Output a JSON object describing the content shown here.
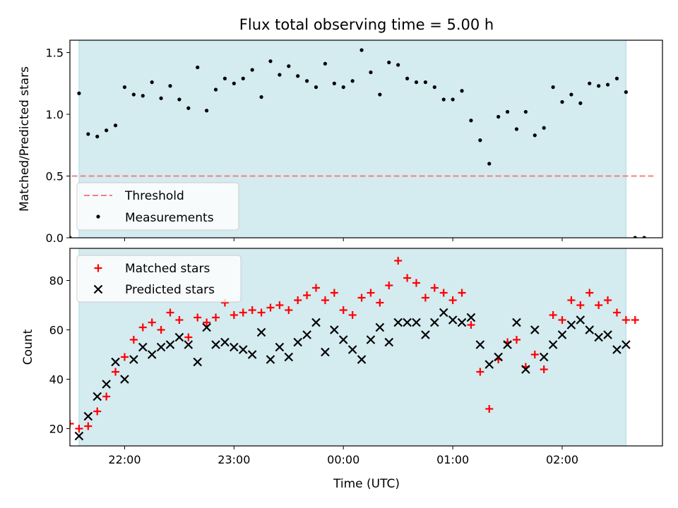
{
  "colors": {
    "band": "#d4ebf0",
    "threshold": "#f08080",
    "measurement": "#000000",
    "matched": "#ff0000",
    "predicted": "#000000"
  },
  "chart_data": [
    {
      "type": "scatter",
      "title": "Flux total observing time = 5.00 h",
      "ylabel": "Matched/Predicted stars",
      "xlim": [
        "21:30",
        "02:55"
      ],
      "ylim": [
        0,
        1.6
      ],
      "yticks": [
        "0.0",
        "0.5",
        "1.0",
        "1.5"
      ],
      "shaded_interval": [
        "21:35",
        "02:35"
      ],
      "threshold": {
        "label": "Threshold",
        "value": 0.5,
        "x_range": [
          "21:31",
          "02:50"
        ]
      },
      "legend": {
        "position": "lower-left",
        "entries": [
          "Threshold",
          "Measurements"
        ]
      },
      "series": [
        {
          "name": "Measurements",
          "marker": "dot",
          "x": [
            "21:30",
            "21:35",
            "21:40",
            "21:45",
            "21:50",
            "21:55",
            "22:00",
            "22:05",
            "22:10",
            "22:15",
            "22:20",
            "22:25",
            "22:30",
            "22:35",
            "22:40",
            "22:45",
            "22:50",
            "22:55",
            "23:00",
            "23:05",
            "23:10",
            "23:15",
            "23:20",
            "23:25",
            "23:30",
            "23:35",
            "23:40",
            "23:45",
            "23:50",
            "23:55",
            "00:00",
            "00:05",
            "00:10",
            "00:15",
            "00:20",
            "00:25",
            "00:30",
            "00:35",
            "00:40",
            "00:45",
            "00:50",
            "00:55",
            "01:00",
            "01:05",
            "01:10",
            "01:15",
            "01:20",
            "01:25",
            "01:30",
            "01:35",
            "01:40",
            "01:45",
            "01:50",
            "01:55",
            "02:00",
            "02:05",
            "02:10",
            "02:15",
            "02:20",
            "02:25",
            "02:30",
            "02:35",
            "02:40"
          ],
          "y": [
            0.0,
            1.17,
            0.84,
            0.82,
            0.87,
            0.91,
            1.22,
            1.16,
            1.15,
            1.26,
            1.13,
            1.23,
            1.12,
            1.05,
            1.38,
            1.03,
            1.2,
            1.29,
            1.25,
            1.29,
            1.36,
            1.14,
            1.43,
            1.32,
            1.39,
            1.31,
            1.27,
            1.22,
            1.41,
            1.25,
            1.22,
            1.27,
            1.52,
            1.34,
            1.16,
            1.42,
            1.4,
            1.29,
            1.26,
            1.26,
            1.22,
            1.12,
            1.12,
            1.19,
            0.95,
            0.79,
            0.6,
            0.98,
            1.02,
            0.88,
            1.02,
            0.83,
            0.89,
            1.22,
            1.1,
            1.16,
            1.09,
            1.25,
            1.23,
            1.24,
            1.29,
            1.18,
            0.0
          ]
        },
        {
          "name": "",
          "marker": "dot",
          "x": [
            "02:45"
          ],
          "y": [
            0.0
          ]
        }
      ]
    },
    {
      "type": "scatter",
      "xlabel": "Time (UTC)",
      "ylabel": "Count",
      "xlim": [
        "21:30",
        "02:55"
      ],
      "ylim": [
        13,
        93
      ],
      "xticks": [
        "22:00",
        "23:00",
        "00:00",
        "01:00",
        "02:00"
      ],
      "yticks": [
        "20",
        "40",
        "60",
        "80"
      ],
      "shaded_interval": [
        "21:35",
        "02:35"
      ],
      "legend": {
        "position": "upper-left",
        "entries": [
          "Matched stars",
          "Predicted stars"
        ]
      },
      "series": [
        {
          "name": "Matched stars",
          "marker": "plus",
          "x": [
            "21:30",
            "21:35",
            "21:40",
            "21:45",
            "21:50",
            "21:55",
            "22:00",
            "22:05",
            "22:10",
            "22:15",
            "22:20",
            "22:25",
            "22:30",
            "22:35",
            "22:40",
            "22:45",
            "22:50",
            "22:55",
            "23:00",
            "23:05",
            "23:10",
            "23:15",
            "23:20",
            "23:25",
            "23:30",
            "23:35",
            "23:40",
            "23:45",
            "23:50",
            "23:55",
            "00:00",
            "00:05",
            "00:10",
            "00:15",
            "00:20",
            "00:25",
            "00:30",
            "00:35",
            "00:40",
            "00:45",
            "00:50",
            "00:55",
            "01:00",
            "01:05",
            "01:10",
            "01:15",
            "01:20",
            "01:25",
            "01:30",
            "01:35",
            "01:40",
            "01:45",
            "01:50",
            "01:55",
            "02:00",
            "02:05",
            "02:10",
            "02:15",
            "02:20",
            "02:25",
            "02:30",
            "02:35",
            "02:40"
          ],
          "y": [
            22,
            20,
            21,
            27,
            33,
            43,
            49,
            56,
            61,
            63,
            60,
            67,
            64,
            57,
            65,
            63,
            65,
            71,
            66,
            67,
            68,
            67,
            69,
            70,
            68,
            72,
            74,
            77,
            72,
            75,
            68,
            66,
            73,
            75,
            71,
            78,
            88,
            81,
            79,
            73,
            77,
            75,
            72,
            75,
            62,
            43,
            28,
            48,
            55,
            56,
            45,
            50,
            44,
            66,
            64,
            72,
            70,
            75,
            70,
            72,
            67,
            64,
            64
          ]
        },
        {
          "name": "Predicted stars",
          "marker": "x",
          "x": [
            "21:35",
            "21:40",
            "21:45",
            "21:50",
            "21:55",
            "22:00",
            "22:05",
            "22:10",
            "22:15",
            "22:20",
            "22:25",
            "22:30",
            "22:35",
            "22:40",
            "22:45",
            "22:50",
            "22:55",
            "23:00",
            "23:05",
            "23:10",
            "23:15",
            "23:20",
            "23:25",
            "23:30",
            "23:35",
            "23:40",
            "23:45",
            "23:50",
            "23:55",
            "00:00",
            "00:05",
            "00:10",
            "00:15",
            "00:20",
            "00:25",
            "00:30",
            "00:35",
            "00:40",
            "00:45",
            "00:50",
            "00:55",
            "01:00",
            "01:05",
            "01:10",
            "01:15",
            "01:20",
            "01:25",
            "01:30",
            "01:35",
            "01:40",
            "01:45",
            "01:50",
            "01:55",
            "02:00",
            "02:05",
            "02:10",
            "02:15",
            "02:20",
            "02:25",
            "02:30",
            "02:35"
          ],
          "y": [
            17,
            25,
            33,
            38,
            47,
            40,
            48,
            53,
            50,
            53,
            54,
            57,
            54,
            47,
            61,
            54,
            55,
            53,
            52,
            50,
            59,
            48,
            53,
            49,
            55,
            58,
            63,
            51,
            60,
            56,
            52,
            48,
            56,
            61,
            55,
            63,
            63,
            63,
            58,
            63,
            67,
            64,
            63,
            65,
            54,
            46,
            49,
            54,
            63,
            44,
            60,
            49,
            54,
            58,
            62,
            64,
            60,
            57,
            58,
            52,
            54
          ]
        }
      ]
    }
  ]
}
